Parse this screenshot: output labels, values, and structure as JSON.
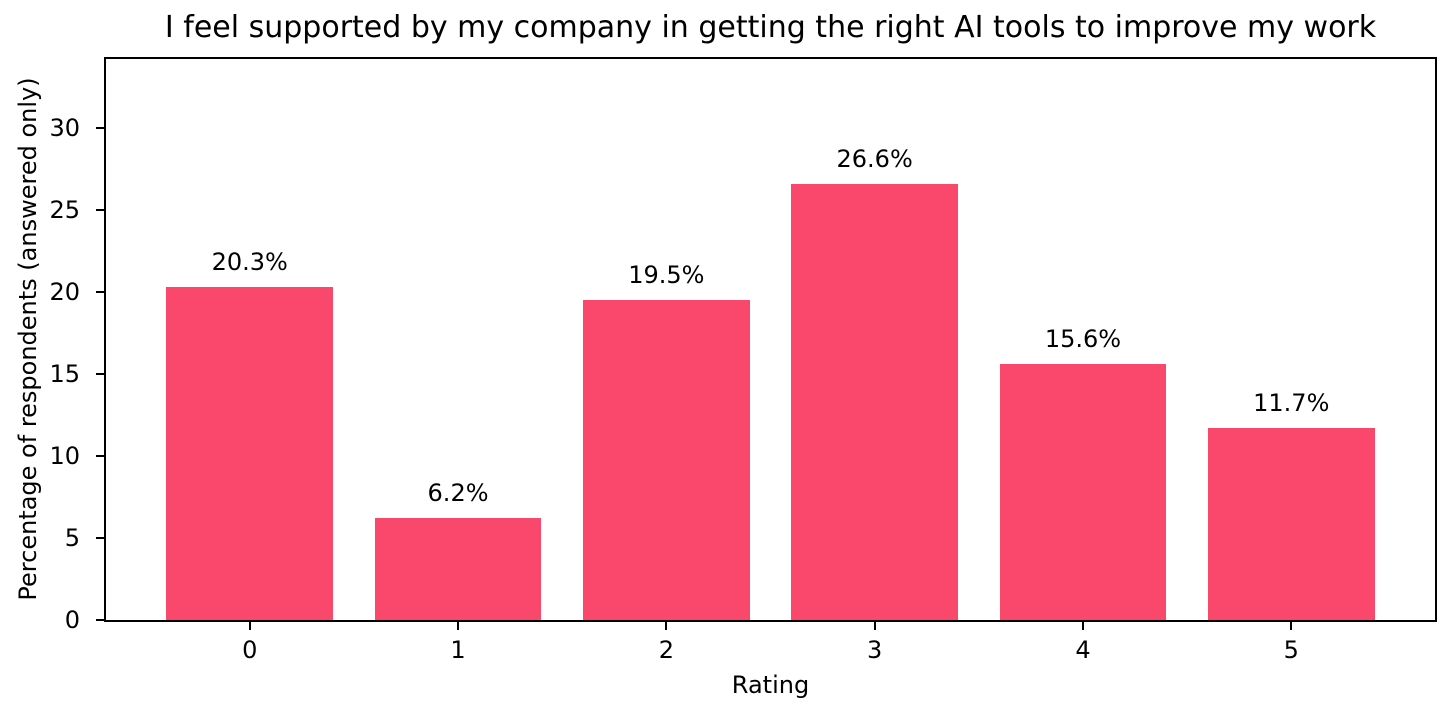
{
  "chart_data": {
    "type": "bar",
    "title": "I feel supported by my company in getting the right AI tools to improve my work",
    "xlabel": "Rating",
    "ylabel": "Percentage of respondents (answered only)",
    "categories": [
      "0",
      "1",
      "2",
      "3",
      "4",
      "5"
    ],
    "values": [
      20.3,
      6.2,
      19.5,
      26.6,
      15.6,
      11.7
    ],
    "bar_labels": [
      "20.3%",
      "6.2%",
      "19.5%",
      "26.6%",
      "15.6%",
      "11.7%"
    ],
    "yticks": [
      0,
      5,
      10,
      15,
      20,
      25,
      30
    ],
    "ylim": [
      0,
      34.2
    ],
    "xlim": [
      -0.69,
      5.69
    ],
    "bar_width": 0.8,
    "bar_color": "#FA486C",
    "axis_color": "#000000",
    "text_color": "#000000",
    "background_color": "#FFFFFF",
    "grid": false
  }
}
